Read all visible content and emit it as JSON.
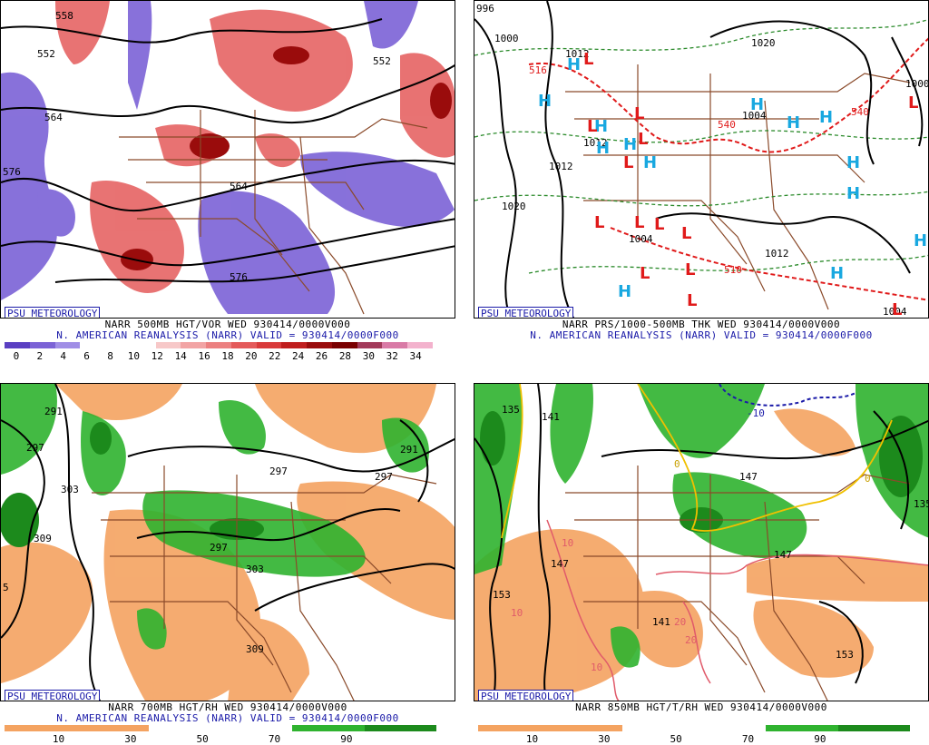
{
  "panels": [
    {
      "id": "vorticity",
      "logo": "PSU METEOROLOGY",
      "title_line": "NARR 500MB HGT/VOR WED 930414/0000V000",
      "subtitle_line": "N. AMERICAN REANALYSIS (NARR) VALID = 930414/0000F000",
      "colorbar": {
        "ticks": [
          "0",
          "2",
          "4",
          "6",
          "8",
          "10",
          "12",
          "14",
          "16",
          "18",
          "20",
          "22",
          "24",
          "26",
          "28",
          "30",
          "32",
          "34"
        ],
        "colors": [
          "#5a3fc2",
          "#7b62d6",
          "#a08ee6",
          "#ffffff",
          "#ffffff",
          "#ffffff",
          "#f7c8c8",
          "#f2a4a4",
          "#ec8080",
          "#e45a5a",
          "#d93a3a",
          "#c01e1e",
          "#9a0c0c",
          "#7a0000",
          "#a33a5a",
          "#d97aa6",
          "#f3b2cd"
        ]
      },
      "contour_labels": [
        "558",
        "552",
        "564",
        "576",
        "564",
        "576",
        "552"
      ]
    },
    {
      "id": "pressure",
      "logo": "PSU METEOROLOGY",
      "title_line": "NARR PRS/1000-500MB THK WED 930414/0000V000",
      "subtitle_line": "N. AMERICAN REANALYSIS (NARR) VALID = 930414/0000F000",
      "contour_labels": [
        "996",
        "1000",
        "1012",
        "1020",
        "1020",
        "1012",
        "1004",
        "1000",
        "1012",
        "1004",
        "1012",
        "1004",
        "516",
        "540",
        "510",
        "540"
      ],
      "high_symbol": "H",
      "low_symbol": "L",
      "high_color": "#19a8e0",
      "low_color": "#e01a1a"
    },
    {
      "id": "rh700",
      "logo": "PSU METEOROLOGY",
      "title_line": "NARR 700MB HGT/RH WED 930414/0000V000",
      "subtitle_line": "N. AMERICAN REANALYSIS (NARR) VALID = 930414/0000F000",
      "colorbar": {
        "ticks": [
          "10",
          "30",
          "50",
          "70",
          "90"
        ],
        "colors": [
          "#f4a361",
          "#f4a361",
          "#ffffff",
          "#ffffff",
          "#2fb32f",
          "#1c8a1c"
        ]
      },
      "contour_labels": [
        "291",
        "297",
        "303",
        "309",
        "297",
        "297",
        "297",
        "303",
        "309",
        "291",
        "5"
      ]
    },
    {
      "id": "rh850",
      "logo": "PSU METEOROLOGY",
      "title_line": "NARR 850MB HGT/T/RH WED 930414/0000V000",
      "subtitle_line": "",
      "colorbar": {
        "ticks": [
          "10",
          "30",
          "50",
          "70",
          "90"
        ],
        "colors": [
          "#f4a361",
          "#f4a361",
          "#ffffff",
          "#ffffff",
          "#2fb32f",
          "#1c8a1c"
        ]
      },
      "contour_labels": [
        "135",
        "141",
        "147",
        "153",
        "141",
        "147",
        "147",
        "153",
        "135"
      ],
      "temp_labels": [
        "10",
        "10",
        "20",
        "20",
        "10",
        "-10",
        "0",
        "0"
      ]
    }
  ]
}
